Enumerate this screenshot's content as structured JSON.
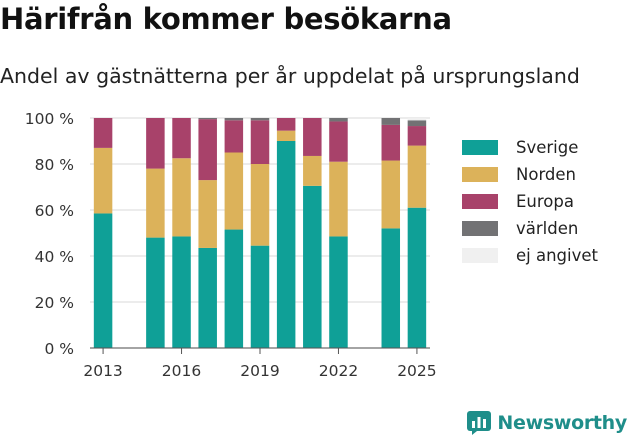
{
  "title": "Härifrån kommer besökarna",
  "subtitle": "Andel av gästnätterna per år uppdelat på ursprungsland",
  "brand": "Newsworthy",
  "chart_data": {
    "type": "bar",
    "stacked": true,
    "ylim": [
      0,
      100
    ],
    "y_ticks": [
      {
        "value": 0,
        "label": "0 %"
      },
      {
        "value": 20,
        "label": "20 %"
      },
      {
        "value": 40,
        "label": "40 %"
      },
      {
        "value": 60,
        "label": "60 %"
      },
      {
        "value": 80,
        "label": "80 %"
      },
      {
        "value": 100,
        "label": "100 %"
      }
    ],
    "x_ticks": [
      {
        "value": 2013,
        "label": "2013"
      },
      {
        "value": 2016,
        "label": "2016"
      },
      {
        "value": 2019,
        "label": "2019"
      },
      {
        "value": 2022,
        "label": "2022"
      },
      {
        "value": 2025,
        "label": "2025"
      }
    ],
    "xlim": [
      2012.5,
      2025.5
    ],
    "grid": true,
    "legend_position": "right",
    "x": [
      2013,
      2015,
      2016,
      2017,
      2018,
      2019,
      2020,
      2021,
      2022,
      2024,
      2025
    ],
    "series": [
      {
        "name": "Sverige",
        "color": "#0fa097",
        "values": [
          58.5,
          48,
          48.5,
          43.5,
          51.5,
          44.5,
          90,
          70.5,
          48.5,
          52,
          61
        ]
      },
      {
        "name": "Norden",
        "color": "#dcb25a",
        "values": [
          28.5,
          30,
          34,
          29.5,
          33.5,
          35.5,
          4.5,
          13,
          32.5,
          29.5,
          27
        ]
      },
      {
        "name": "Europa",
        "color": "#a8426a",
        "values": [
          13,
          22,
          17.5,
          26.5,
          14,
          19,
          5.5,
          16.5,
          17.5,
          15.5,
          8.5
        ]
      },
      {
        "name": "världen",
        "color": "#727274",
        "values": [
          0,
          0,
          0,
          0.5,
          1,
          1,
          0,
          0,
          1.5,
          3,
          2.5
        ]
      },
      {
        "name": "ej angivet",
        "color": "#f0f0f0",
        "values": [
          0,
          0,
          0,
          0,
          0,
          0,
          0,
          0,
          0,
          0,
          1
        ]
      }
    ]
  }
}
